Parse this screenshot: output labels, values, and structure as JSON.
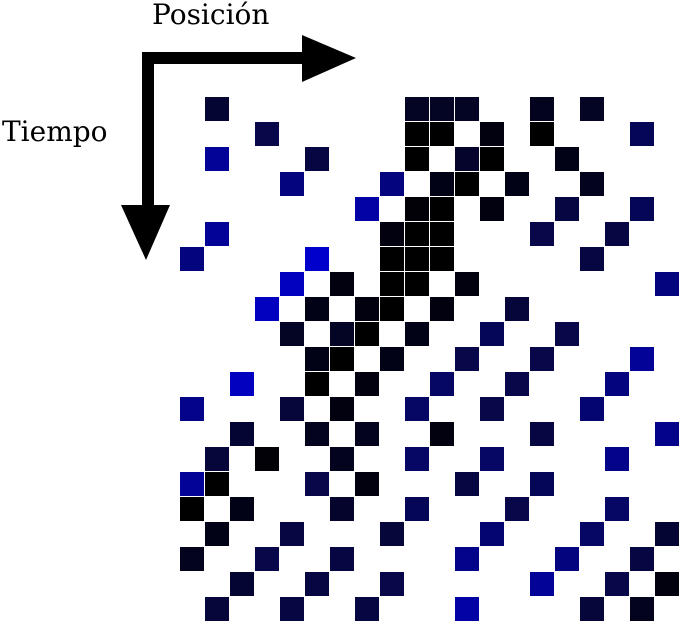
{
  "labels": {
    "position": "Posición",
    "time": "Tiempo"
  },
  "colors": {
    "arrow": "#000000",
    "ramp": [
      "#000000",
      "#07074a",
      "#0000cc"
    ]
  },
  "grid": {
    "rows": 21,
    "cols": 20,
    "cells": [
      [
        0,
        1,
        0.35
      ],
      [
        0,
        9,
        0.25
      ],
      [
        0,
        10,
        0.25
      ],
      [
        0,
        11,
        0.25
      ],
      [
        0,
        14,
        0.2
      ],
      [
        0,
        16,
        0.25
      ],
      [
        1,
        3,
        0.5
      ],
      [
        1,
        9,
        0
      ],
      [
        1,
        10,
        0
      ],
      [
        1,
        12,
        0.1
      ],
      [
        1,
        14,
        0
      ],
      [
        1,
        18,
        0.55
      ],
      [
        2,
        1,
        0.8
      ],
      [
        2,
        5,
        0.45
      ],
      [
        2,
        9,
        0
      ],
      [
        2,
        11,
        0.3
      ],
      [
        2,
        12,
        0
      ],
      [
        2,
        15,
        0.15
      ],
      [
        3,
        4,
        0.7
      ],
      [
        3,
        8,
        0.7
      ],
      [
        3,
        10,
        0.15
      ],
      [
        3,
        11,
        0
      ],
      [
        3,
        13,
        0.15
      ],
      [
        3,
        16,
        0.2
      ],
      [
        4,
        7,
        0.85
      ],
      [
        4,
        9,
        0.05
      ],
      [
        4,
        10,
        0
      ],
      [
        4,
        12,
        0.1
      ],
      [
        4,
        15,
        0.45
      ],
      [
        4,
        18,
        0.55
      ],
      [
        5,
        1,
        0.8
      ],
      [
        5,
        8,
        0.1
      ],
      [
        5,
        9,
        0
      ],
      [
        5,
        10,
        0
      ],
      [
        5,
        14,
        0.5
      ],
      [
        5,
        17,
        0.45
      ],
      [
        6,
        0,
        0.7
      ],
      [
        6,
        5,
        1
      ],
      [
        6,
        8,
        0
      ],
      [
        6,
        9,
        0
      ],
      [
        6,
        10,
        0
      ],
      [
        6,
        16,
        0.45
      ],
      [
        7,
        4,
        0.95
      ],
      [
        7,
        6,
        0.1
      ],
      [
        7,
        8,
        0
      ],
      [
        7,
        9,
        0
      ],
      [
        7,
        11,
        0.1
      ],
      [
        7,
        19,
        0.7
      ],
      [
        8,
        3,
        0.95
      ],
      [
        8,
        5,
        0.15
      ],
      [
        8,
        7,
        0.1
      ],
      [
        8,
        8,
        0
      ],
      [
        8,
        10,
        0.1
      ],
      [
        8,
        13,
        0.4
      ],
      [
        9,
        4,
        0.25
      ],
      [
        9,
        6,
        0.25
      ],
      [
        9,
        7,
        0
      ],
      [
        9,
        9,
        0.15
      ],
      [
        9,
        12,
        0.55
      ],
      [
        9,
        15,
        0.5
      ],
      [
        10,
        5,
        0.15
      ],
      [
        10,
        6,
        0
      ],
      [
        10,
        8,
        0.15
      ],
      [
        10,
        11,
        0.5
      ],
      [
        10,
        14,
        0.5
      ],
      [
        10,
        18,
        0.8
      ],
      [
        11,
        2,
        0.95
      ],
      [
        11,
        5,
        0
      ],
      [
        11,
        7,
        0.1
      ],
      [
        11,
        10,
        0.6
      ],
      [
        11,
        13,
        0.5
      ],
      [
        11,
        17,
        0.7
      ],
      [
        12,
        0,
        0.75
      ],
      [
        12,
        4,
        0.4
      ],
      [
        12,
        6,
        0.1
      ],
      [
        12,
        9,
        0.6
      ],
      [
        12,
        12,
        0.5
      ],
      [
        12,
        16,
        0.65
      ],
      [
        13,
        2,
        0.35
      ],
      [
        13,
        5,
        0.2
      ],
      [
        13,
        7,
        0.2
      ],
      [
        13,
        10,
        0.1
      ],
      [
        13,
        14,
        0.45
      ],
      [
        13,
        19,
        0.75
      ],
      [
        14,
        1,
        0.4
      ],
      [
        14,
        3,
        0.05
      ],
      [
        14,
        6,
        0.2
      ],
      [
        14,
        9,
        0.6
      ],
      [
        14,
        12,
        0.6
      ],
      [
        14,
        17,
        0.75
      ],
      [
        15,
        0,
        0.8
      ],
      [
        15,
        1,
        0
      ],
      [
        15,
        5,
        0.5
      ],
      [
        15,
        7,
        0.1
      ],
      [
        15,
        11,
        0.45
      ],
      [
        15,
        14,
        0.55
      ],
      [
        16,
        0,
        0
      ],
      [
        16,
        2,
        0.15
      ],
      [
        16,
        6,
        0.3
      ],
      [
        16,
        9,
        0.55
      ],
      [
        16,
        13,
        0.5
      ],
      [
        16,
        17,
        0.6
      ],
      [
        17,
        1,
        0.15
      ],
      [
        17,
        4,
        0.45
      ],
      [
        17,
        8,
        0.4
      ],
      [
        17,
        12,
        0.65
      ],
      [
        17,
        16,
        0.6
      ],
      [
        17,
        19,
        0.35
      ],
      [
        18,
        0,
        0.2
      ],
      [
        18,
        3,
        0.5
      ],
      [
        18,
        6,
        0.45
      ],
      [
        18,
        11,
        0.75
      ],
      [
        18,
        15,
        0.7
      ],
      [
        18,
        18,
        0.45
      ],
      [
        19,
        2,
        0.35
      ],
      [
        19,
        5,
        0.45
      ],
      [
        19,
        8,
        0.5
      ],
      [
        19,
        14,
        0.8
      ],
      [
        19,
        17,
        0.5
      ],
      [
        19,
        19,
        0.1
      ],
      [
        20,
        1,
        0.4
      ],
      [
        20,
        4,
        0.45
      ],
      [
        20,
        7,
        0.45
      ],
      [
        20,
        11,
        0.85
      ],
      [
        20,
        16,
        0.4
      ],
      [
        20,
        18,
        0.2
      ]
    ]
  }
}
